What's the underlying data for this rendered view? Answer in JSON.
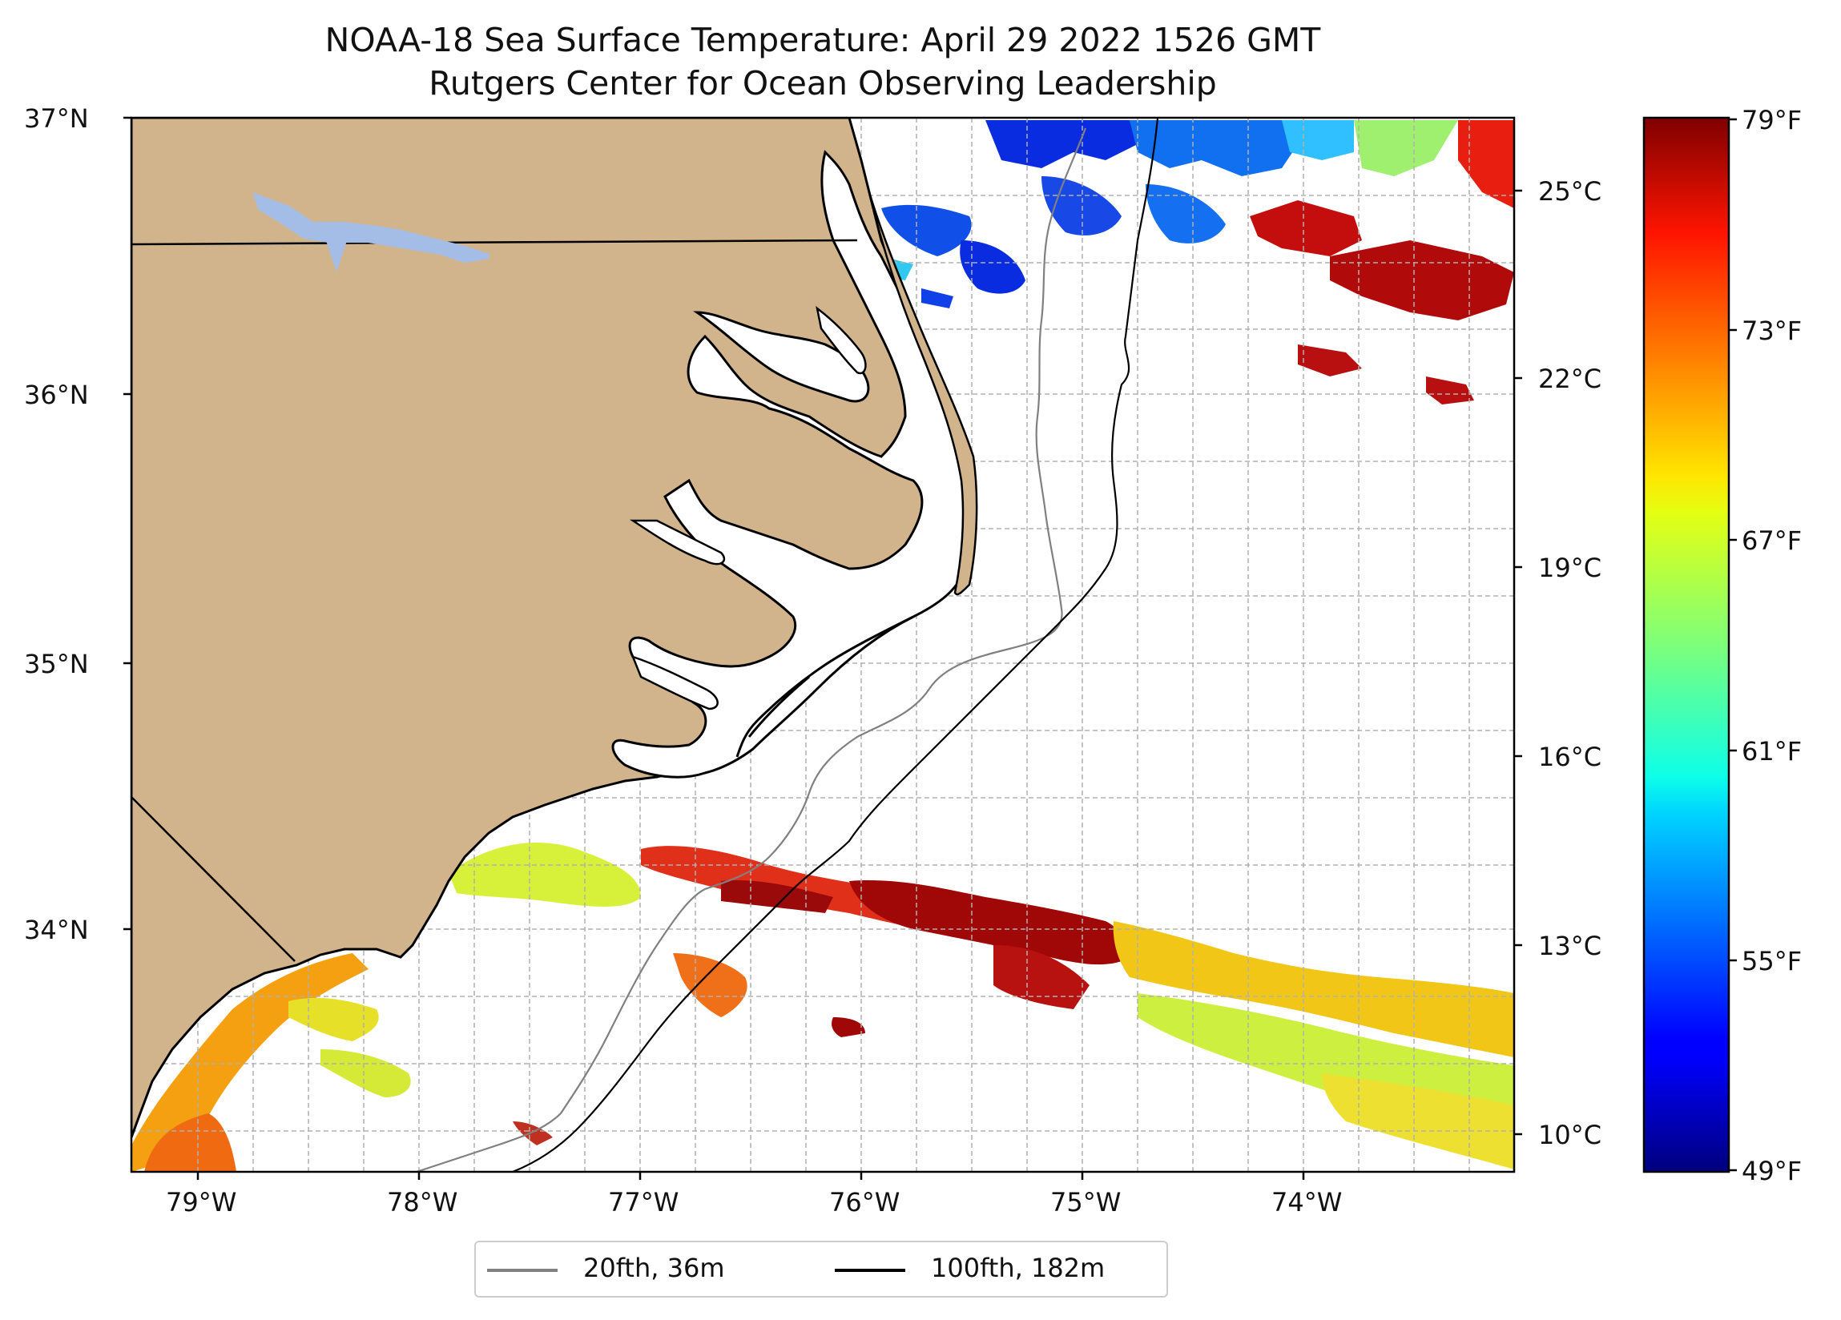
{
  "title": "NOAA-18 Sea Surface Temperature: April 29 2022 1526 GMT",
  "subtitle": "Rutgers Center for Ocean Observing Leadership",
  "map": {
    "extent": {
      "lon": [
        -79.3,
        -73.05
      ],
      "lat": [
        33.1,
        37.0
      ]
    },
    "lon_ticks": [
      "79°W",
      "78°W",
      "77°W",
      "76°W",
      "75°W",
      "74°W"
    ],
    "lat_ticks": [
      "34°N",
      "35°N",
      "36°N",
      "37°N"
    ],
    "land_color": "#d2b48c",
    "gridlines": true
  },
  "colorbar": {
    "colormap": "jet",
    "range_f": [
      49,
      79
    ],
    "f_labels": [
      "79°F",
      "73°F",
      "67°F",
      "61°F",
      "55°F",
      "49°F"
    ],
    "c_labels": [
      "25°C",
      "22°C",
      "19°C",
      "16°C",
      "13°C",
      "10°C"
    ]
  },
  "legend": {
    "items": [
      {
        "label": "20fth, 36m",
        "color": "#808080"
      },
      {
        "label": "100fth, 182m",
        "color": "#000000"
      }
    ]
  }
}
